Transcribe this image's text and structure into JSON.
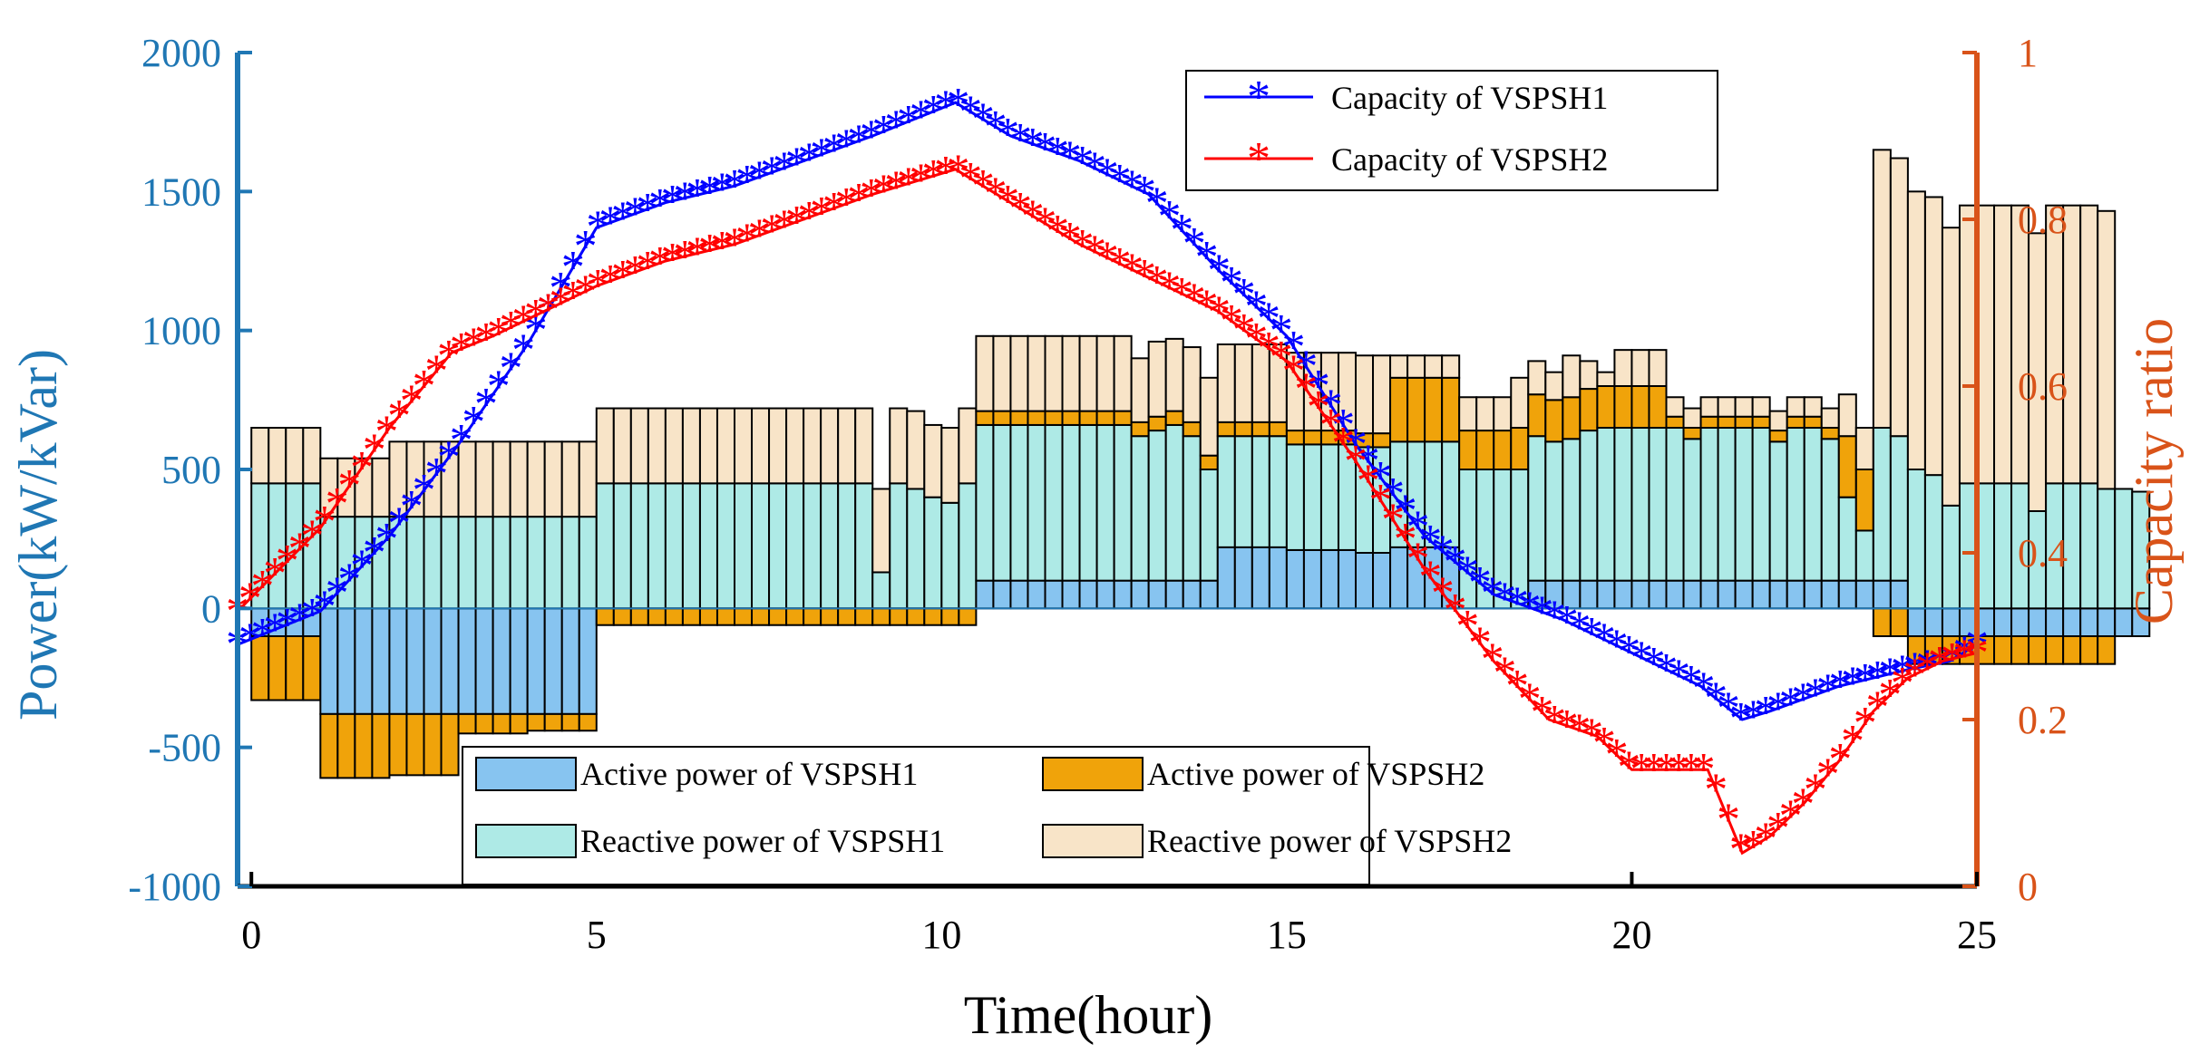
{
  "chart_data": {
    "type": "bar+line",
    "xlabel": "Time(hour)",
    "ylabel_left": "Power(kW/kVar)",
    "ylabel_right": "Capacity ratio",
    "xlim": [
      -0.2,
      25
    ],
    "ylim_left": [
      -1000,
      2000
    ],
    "ylim_right": [
      0,
      1
    ],
    "xticks": [
      "0",
      "5",
      "10",
      "15",
      "20",
      "25"
    ],
    "yticks_left": [
      "-1000",
      "-500",
      "0",
      "500",
      "1000",
      "1500",
      "2000"
    ],
    "yticks_right": [
      "0",
      "0.2",
      "0.4",
      "0.6",
      "0.8",
      "1"
    ],
    "colors": {
      "left_axis": "#1f77b4",
      "right_axis": "#d95319",
      "active1": "#87c4f0",
      "reactive1": "#aeeae6",
      "active2": "#f0a30a",
      "reactive2": "#f8e4c8",
      "line1": "#0000ff",
      "line2": "#ff0000"
    },
    "bar_width_hours": 0.25,
    "bar_x_start": 0,
    "bar_series": [
      {
        "name": "Active power of VSPSH1",
        "values": [
          -100,
          -100,
          -100,
          -100,
          -380,
          -380,
          -380,
          -380,
          -380,
          -380,
          -380,
          -380,
          -380,
          -380,
          -380,
          -380,
          -380,
          -380,
          -380,
          -380,
          0,
          0,
          0,
          0,
          0,
          0,
          0,
          0,
          0,
          0,
          0,
          0,
          0,
          0,
          0,
          0,
          0,
          0,
          0,
          0,
          0,
          0,
          100,
          100,
          100,
          100,
          100,
          100,
          100,
          100,
          100,
          100,
          100,
          100,
          100,
          100,
          220,
          220,
          220,
          220,
          210,
          210,
          210,
          210,
          200,
          200,
          220,
          220,
          220,
          220,
          0,
          0,
          0,
          0,
          100,
          100,
          100,
          100,
          100,
          100,
          100,
          100,
          100,
          100,
          100,
          100,
          100,
          100,
          100,
          100,
          100,
          100,
          100,
          100,
          100,
          100,
          -100,
          -100,
          -100,
          -100,
          -100,
          -100,
          -100,
          -100,
          -100,
          -100,
          -100,
          -100,
          -100,
          -100
        ]
      },
      {
        "name": "Reactive power of VSPSH1",
        "values": [
          450,
          450,
          450,
          450,
          330,
          330,
          330,
          330,
          330,
          330,
          330,
          330,
          330,
          330,
          330,
          330,
          330,
          330,
          330,
          330,
          450,
          450,
          450,
          450,
          450,
          450,
          450,
          450,
          450,
          450,
          450,
          450,
          450,
          450,
          450,
          450,
          130,
          450,
          430,
          400,
          380,
          450,
          560,
          560,
          560,
          560,
          560,
          560,
          560,
          560,
          560,
          520,
          540,
          560,
          520,
          400,
          400,
          400,
          400,
          400,
          380,
          380,
          380,
          380,
          380,
          380,
          380,
          380,
          380,
          380,
          500,
          500,
          500,
          500,
          520,
          500,
          510,
          540,
          550,
          550,
          550,
          550,
          550,
          510,
          550,
          550,
          550,
          550,
          500,
          550,
          550,
          510,
          300,
          180,
          550,
          520,
          500,
          480,
          370,
          450,
          450,
          450,
          450,
          350,
          450,
          450,
          450,
          430,
          430,
          420
        ]
      },
      {
        "name": "Active power of VSPSH2",
        "values": [
          -230,
          -230,
          -230,
          -230,
          -230,
          -230,
          -230,
          -230,
          -220,
          -220,
          -220,
          -220,
          -70,
          -70,
          -70,
          -70,
          -60,
          -60,
          -60,
          -60,
          -60,
          -60,
          -60,
          -60,
          -60,
          -60,
          -60,
          -60,
          -60,
          -60,
          -60,
          -60,
          -60,
          -60,
          -60,
          -60,
          -60,
          -60,
          -60,
          -60,
          -60,
          -60,
          50,
          50,
          50,
          50,
          50,
          50,
          50,
          50,
          50,
          50,
          50,
          50,
          50,
          50,
          50,
          50,
          50,
          50,
          50,
          50,
          50,
          50,
          50,
          50,
          230,
          230,
          230,
          230,
          140,
          140,
          140,
          150,
          150,
          150,
          150,
          150,
          150,
          150,
          150,
          150,
          40,
          40,
          40,
          40,
          40,
          40,
          40,
          40,
          40,
          40,
          220,
          220,
          -100,
          -100,
          -100,
          -100,
          -100,
          -100,
          -100,
          -100,
          -100,
          -100,
          -100,
          -100,
          -100,
          -100
        ]
      },
      {
        "name": "Reactive power of VSPSH2",
        "values": [
          200,
          200,
          200,
          200,
          210,
          210,
          210,
          210,
          270,
          270,
          270,
          270,
          270,
          270,
          270,
          270,
          270,
          270,
          270,
          270,
          270,
          270,
          270,
          270,
          270,
          270,
          270,
          270,
          270,
          270,
          270,
          270,
          270,
          270,
          270,
          270,
          300,
          270,
          280,
          260,
          270,
          270,
          270,
          270,
          270,
          270,
          270,
          270,
          270,
          270,
          270,
          230,
          270,
          260,
          270,
          280,
          280,
          280,
          280,
          280,
          280,
          280,
          280,
          280,
          280,
          280,
          80,
          80,
          80,
          80,
          120,
          120,
          120,
          180,
          120,
          100,
          150,
          100,
          50,
          130,
          130,
          130,
          70,
          70,
          70,
          70,
          70,
          70,
          70,
          70,
          70,
          70,
          150,
          150,
          1000,
          1000,
          1000,
          1000,
          1000,
          1000,
          1000,
          1000,
          1000,
          1000,
          1000,
          1000,
          1000,
          1000
        ]
      }
    ],
    "line_series": [
      {
        "name": "Capacity of VSPSH1",
        "x": [
          -0.2,
          1,
          2,
          3,
          4,
          5,
          6,
          7,
          8,
          9,
          10.2,
          11,
          12,
          13,
          14,
          15,
          16,
          17,
          18,
          19,
          20,
          21,
          21.6,
          22,
          23,
          24,
          24.6,
          25
        ],
        "y": [
          0.29,
          0.33,
          0.42,
          0.53,
          0.65,
          0.79,
          0.82,
          0.84,
          0.87,
          0.9,
          0.94,
          0.9,
          0.87,
          0.83,
          0.74,
          0.66,
          0.53,
          0.42,
          0.35,
          0.32,
          0.28,
          0.24,
          0.2,
          0.21,
          0.24,
          0.26,
          0.27,
          0.29
        ]
      },
      {
        "name": "Capacity of VSPSH2",
        "x": [
          -0.2,
          1,
          2,
          2.9,
          3.5,
          4,
          5,
          6,
          7,
          8,
          9,
          10.2,
          11,
          12,
          13,
          14,
          15,
          16,
          17,
          18,
          18.8,
          19.5,
          20,
          21.1,
          21.6,
          22,
          22.5,
          23,
          23.5,
          24,
          24.5,
          25
        ],
        "y": [
          0.33,
          0.43,
          0.55,
          0.64,
          0.66,
          0.68,
          0.72,
          0.75,
          0.77,
          0.8,
          0.83,
          0.86,
          0.82,
          0.77,
          0.73,
          0.69,
          0.63,
          0.51,
          0.38,
          0.27,
          0.2,
          0.18,
          0.14,
          0.14,
          0.04,
          0.06,
          0.1,
          0.15,
          0.21,
          0.25,
          0.27,
          0.28
        ]
      }
    ],
    "legend_bars": {
      "items": [
        "Active power of VSPSH1",
        "Active power of VSPSH2",
        "Reactive power of VSPSH1",
        "Reactive power of VSPSH2"
      ],
      "placement": "bottom-center"
    },
    "legend_lines": {
      "items": [
        "Capacity of VSPSH1",
        "Capacity of VSPSH2"
      ],
      "placement": "top-right"
    }
  }
}
